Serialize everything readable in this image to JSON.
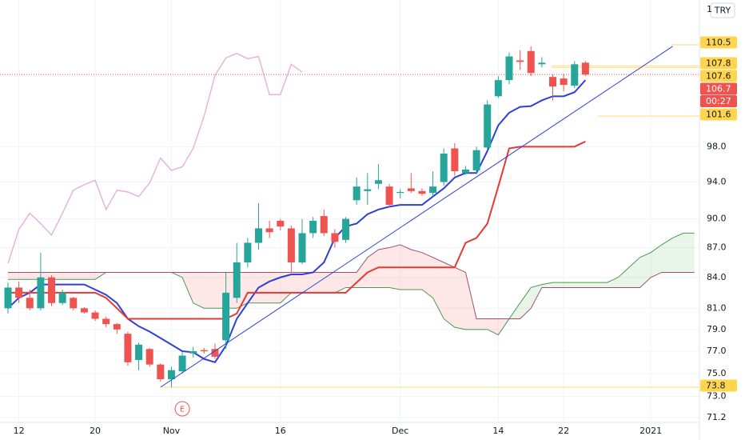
{
  "chart_data": {
    "type": "candlestick",
    "currency": "TRY",
    "clipped_tick_label": "1",
    "log_scale": true,
    "grid": true,
    "up_color": "#26a69a",
    "down_color": "#ef5350",
    "categories": [
      null,
      "12",
      null,
      null,
      null,
      null,
      null,
      null,
      "20",
      null,
      null,
      null,
      null,
      null,
      null,
      "Nov",
      null,
      null,
      null,
      null,
      null,
      null,
      null,
      null,
      null,
      "16",
      null,
      null,
      null,
      null,
      null,
      null,
      null,
      null,
      null,
      null,
      "Dec",
      null,
      null,
      null,
      null,
      null,
      null,
      null,
      null,
      "14",
      null,
      null,
      null,
      null,
      null,
      "22",
      null,
      null,
      null,
      null,
      null,
      null,
      null,
      "2021",
      null,
      null,
      null,
      null
    ],
    "open": [
      81.0,
      83.0,
      82.0,
      81.0,
      84.0,
      81.5,
      82.0,
      81.0,
      80.6,
      80.0,
      79.5,
      78.6,
      76.2,
      77.2,
      75.8,
      74.5,
      75.2,
      76.8,
      77.1,
      77.2,
      78.0,
      82.0,
      85.5,
      87.5,
      89.0,
      89.8,
      89.0,
      85.5,
      88.5,
      90.3,
      88.5,
      87.8,
      92.0,
      93.0,
      93.8,
      93.5,
      92.8,
      93.3,
      93.0,
      92.8,
      94.0,
      97.8,
      95.0,
      95.3,
      97.9,
      104.0,
      106.0,
      108.5,
      109.7,
      108.0,
      106.4,
      106.2,
      105.3,
      108.2,
      null,
      null,
      null,
      null,
      null,
      null,
      null,
      null,
      null,
      null
    ],
    "high": [
      83.5,
      83.6,
      82.8,
      86.5,
      84.2,
      82.8,
      82.1,
      81.1,
      80.8,
      80.2,
      79.6,
      78.8,
      77.8,
      77.3,
      75.9,
      75.6,
      76.9,
      77.4,
      77.3,
      77.7,
      84.5,
      87.5,
      88.0,
      91.7,
      89.8,
      90.0,
      89.3,
      90.0,
      90.2,
      91.0,
      88.9,
      90.2,
      94.5,
      95.0,
      96.0,
      93.8,
      93.2,
      95.0,
      93.3,
      95.2,
      97.8,
      98.4,
      95.8,
      98.0,
      103.5,
      106.5,
      109.5,
      109.8,
      110.3,
      108.9,
      106.7,
      106.8,
      108.4,
      108.4,
      null,
      null,
      null,
      null,
      null,
      null,
      null,
      null,
      null,
      null
    ],
    "low": [
      80.5,
      81.5,
      80.8,
      80.8,
      81.2,
      81.3,
      80.8,
      80.5,
      79.8,
      79.2,
      78.6,
      75.7,
      75.3,
      75.6,
      74.3,
      73.8,
      75.0,
      76.4,
      76.8,
      76.3,
      77.2,
      81.5,
      85.0,
      86.8,
      88.0,
      88.8,
      84.5,
      85.3,
      88.0,
      88.2,
      87.0,
      87.5,
      91.5,
      91.5,
      93.2,
      91.2,
      92.2,
      92.8,
      92.5,
      92.4,
      93.6,
      94.7,
      94.8,
      95.0,
      97.7,
      103.8,
      105.5,
      107.3,
      106.5,
      107.6,
      103.5,
      104.6,
      105.0,
      106.5,
      null,
      null,
      null,
      null,
      null,
      null,
      null,
      null,
      null,
      null
    ],
    "close": [
      83.0,
      82.0,
      81.0,
      84.0,
      81.5,
      82.5,
      81.0,
      80.6,
      80.0,
      79.5,
      79.0,
      76.0,
      77.6,
      75.8,
      74.5,
      75.3,
      76.6,
      77.0,
      77.0,
      76.5,
      82.5,
      85.5,
      87.5,
      89.0,
      88.6,
      89.2,
      85.5,
      88.5,
      89.8,
      88.5,
      87.6,
      90.0,
      93.5,
      93.2,
      94.2,
      91.5,
      92.9,
      93.0,
      92.7,
      93.5,
      97.2,
      95.2,
      95.4,
      97.6,
      103.0,
      106.0,
      109.0,
      108.3,
      106.9,
      108.2,
      105.2,
      105.4,
      108.0,
      106.7,
      null,
      null,
      null,
      null,
      null,
      null,
      null,
      null,
      null,
      null
    ],
    "lines": [
      {
        "color": "#2e3fd9",
        "values": [
          81.0,
          82.0,
          82.5,
          83.3,
          83.3,
          83.3,
          83.3,
          83.3,
          82.8,
          82.3,
          81.5,
          80.0,
          79.3,
          78.8,
          78.2,
          77.6,
          77.0,
          76.9,
          76.3,
          76.0,
          77.5,
          80.0,
          81.5,
          83.0,
          83.6,
          84.0,
          84.3,
          84.3,
          84.5,
          85.5,
          88.0,
          89.2,
          89.5,
          90.5,
          91.0,
          91.3,
          91.5,
          91.5,
          91.5,
          92.4,
          93.3,
          94.5,
          95.0,
          95.0,
          97.5,
          100.5,
          102.0,
          102.7,
          102.8,
          103.5,
          104.0,
          104.0,
          104.5,
          106.0,
          null,
          null,
          null,
          null,
          null,
          null,
          null,
          null,
          null,
          null
        ]
      },
      {
        "color": "#e53935",
        "values": [
          82.5,
          82.5,
          82.5,
          82.5,
          82.5,
          82.5,
          82.5,
          82.5,
          82.5,
          82.0,
          81.0,
          80.0,
          80.0,
          80.0,
          80.0,
          80.0,
          80.0,
          80.0,
          80.0,
          80.0,
          80.0,
          80.5,
          82.5,
          82.5,
          82.5,
          82.5,
          82.5,
          82.5,
          82.5,
          82.5,
          82.5,
          82.5,
          83.5,
          84.5,
          85.0,
          85.0,
          85.0,
          85.0,
          85.0,
          85.0,
          85.0,
          85.0,
          87.5,
          88.0,
          89.5,
          93.5,
          97.8,
          98.0,
          98.0,
          98.0,
          98.0,
          98.0,
          98.0,
          98.6,
          null,
          null,
          null,
          null,
          null,
          null,
          null,
          null,
          null,
          null
        ]
      },
      {
        "color": "#e7b3dc",
        "values": [
          85.4,
          88.9,
          90.6,
          89.5,
          88.3,
          90.6,
          93.1,
          93.7,
          94.2,
          91.0,
          93.1,
          92.9,
          92.4,
          93.9,
          96.7,
          95.3,
          95.7,
          97.8,
          101.6,
          106.6,
          108.8,
          109.4,
          108.7,
          109.0,
          104.2,
          104.2,
          108.0,
          107.0,
          null,
          null,
          null,
          null,
          null,
          null,
          null,
          null,
          null,
          null,
          null,
          null,
          null,
          null,
          null,
          null,
          null,
          null,
          null,
          null,
          null,
          null,
          null,
          null,
          null,
          null,
          null,
          null,
          null,
          null,
          null,
          null,
          null,
          null,
          null,
          null
        ]
      }
    ],
    "cloud": {
      "span_a": {
        "color": "#4a9a4e",
        "values": [
          83.8,
          83.8,
          83.8,
          83.8,
          83.8,
          83.8,
          83.8,
          83.8,
          83.8,
          84.5,
          84.5,
          84.5,
          84.5,
          84.5,
          84.5,
          84.5,
          84.0,
          81.5,
          81.0,
          81.0,
          81.0,
          81.0,
          81.5,
          81.5,
          81.5,
          81.5,
          82.5,
          82.5,
          82.5,
          82.5,
          82.5,
          83.0,
          83.0,
          83.0,
          83.0,
          83.0,
          82.8,
          82.8,
          82.8,
          82.0,
          80.0,
          79.2,
          79.0,
          79.0,
          79.0,
          78.5,
          80.0,
          81.5,
          83.0,
          83.3,
          83.5,
          83.5,
          83.5,
          83.5,
          83.5,
          83.5,
          84.0,
          85.0,
          86.0,
          86.5,
          87.3,
          88.0,
          88.5,
          88.5
        ]
      },
      "span_b": {
        "color": "#a0506a",
        "values": [
          84.5,
          84.5,
          84.5,
          84.5,
          84.5,
          84.5,
          84.5,
          84.5,
          84.5,
          84.5,
          84.5,
          84.5,
          84.5,
          84.5,
          84.5,
          84.5,
          84.5,
          84.5,
          84.5,
          84.5,
          84.5,
          84.5,
          84.5,
          84.5,
          84.5,
          84.5,
          84.5,
          84.5,
          84.5,
          84.5,
          84.5,
          84.5,
          84.5,
          86.0,
          86.8,
          87.0,
          87.3,
          86.8,
          86.5,
          86.0,
          85.5,
          85.0,
          84.5,
          80.0,
          80.0,
          80.0,
          80.0,
          80.0,
          81.0,
          83.0,
          83.0,
          83.0,
          83.0,
          83.0,
          83.0,
          83.0,
          83.0,
          83.0,
          83.0,
          84.0,
          84.5,
          84.5,
          84.5,
          84.5
        ]
      },
      "up_fill": "rgba(76,175,80,0.13)",
      "down_fill": "rgba(244,67,54,0.12)"
    },
    "trend_line": {
      "color": "#2e3fd9",
      "x": [
        14,
        61
      ],
      "values": [
        73.8,
        110.3
      ]
    },
    "event_marker": {
      "x": 16,
      "label": "E",
      "color": "#ef5350"
    },
    "ylim": [
      70.8,
      116.5
    ],
    "yticks": [
      {
        "value": 71.2,
        "label": "71.2"
      },
      {
        "value": 73,
        "label": "73.0"
      },
      {
        "value": 75,
        "label": "75.0"
      },
      {
        "value": 77,
        "label": "77.0"
      },
      {
        "value": 79,
        "label": "79.0"
      },
      {
        "value": 81,
        "label": "81.0"
      },
      {
        "value": 84,
        "label": "84.0"
      },
      {
        "value": 87,
        "label": "87.0"
      },
      {
        "value": 90,
        "label": "90.0"
      },
      {
        "value": 94,
        "label": "94.0"
      },
      {
        "value": 98,
        "label": "98.0"
      }
    ],
    "price_labels": [
      {
        "value": 110.5,
        "color": "#ffd54f"
      },
      {
        "value": 107.8,
        "color": "#ffd54f"
      },
      {
        "value": 107.6,
        "color": "#ffd54f"
      },
      {
        "value": 106.7,
        "color": "#ef5350"
      },
      {
        "value": 101.6,
        "color": "#ffd54f"
      },
      {
        "value": 73.8,
        "color": "#ffd54f"
      }
    ],
    "countdown": "00:27"
  }
}
